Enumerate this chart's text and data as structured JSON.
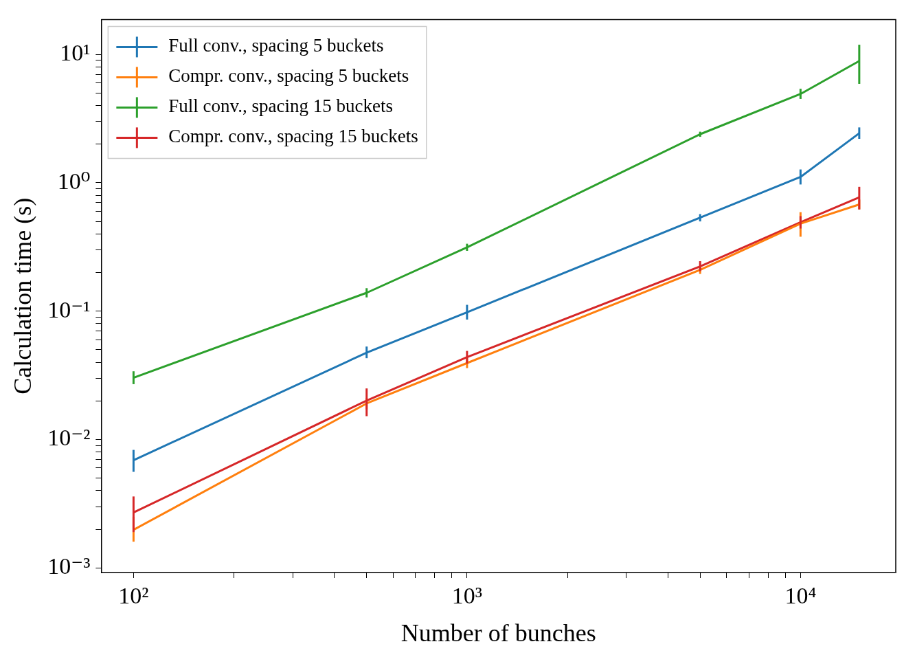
{
  "chart_data": {
    "type": "line",
    "xlabel": "Number of bunches",
    "ylabel": "Calculation time (s)",
    "log": "xy",
    "grid": false,
    "legend": "top left",
    "marker": "none",
    "line_style": "solid",
    "x": [
      100,
      500,
      1000,
      5000,
      10000,
      15000
    ],
    "xlim": [
      80,
      19300
    ],
    "ylim": [
      0.00092,
      18.7
    ],
    "xticks": [
      {
        "value": 100,
        "label": "10²"
      },
      {
        "value": 200,
        "label": null
      },
      {
        "value": 300,
        "label": null
      },
      {
        "value": 400,
        "label": null
      },
      {
        "value": 500,
        "label": null
      },
      {
        "value": 600,
        "label": null
      },
      {
        "value": 700,
        "label": null
      },
      {
        "value": 800,
        "label": null
      },
      {
        "value": 900,
        "label": null
      },
      {
        "value": 1000,
        "label": "10³"
      },
      {
        "value": 2000,
        "label": null
      },
      {
        "value": 3000,
        "label": null
      },
      {
        "value": 4000,
        "label": null
      },
      {
        "value": 5000,
        "label": null
      },
      {
        "value": 6000,
        "label": null
      },
      {
        "value": 7000,
        "label": null
      },
      {
        "value": 8000,
        "label": null
      },
      {
        "value": 9000,
        "label": null
      },
      {
        "value": 10000,
        "label": "10⁴"
      }
    ],
    "yticks": [
      {
        "value": 0.001,
        "label": "10⁻³"
      },
      {
        "value": 0.002,
        "label": null
      },
      {
        "value": 0.003,
        "label": null
      },
      {
        "value": 0.004,
        "label": null
      },
      {
        "value": 0.005,
        "label": null
      },
      {
        "value": 0.006,
        "label": null
      },
      {
        "value": 0.007,
        "label": null
      },
      {
        "value": 0.008,
        "label": null
      },
      {
        "value": 0.009,
        "label": null
      },
      {
        "value": 0.01,
        "label": "10⁻²"
      },
      {
        "value": 0.02,
        "label": null
      },
      {
        "value": 0.03,
        "label": null
      },
      {
        "value": 0.04,
        "label": null
      },
      {
        "value": 0.05,
        "label": null
      },
      {
        "value": 0.06,
        "label": null
      },
      {
        "value": 0.07,
        "label": null
      },
      {
        "value": 0.08,
        "label": null
      },
      {
        "value": 0.09,
        "label": null
      },
      {
        "value": 0.1,
        "label": "10⁻¹"
      },
      {
        "value": 0.2,
        "label": null
      },
      {
        "value": 0.3,
        "label": null
      },
      {
        "value": 0.4,
        "label": null
      },
      {
        "value": 0.5,
        "label": null
      },
      {
        "value": 0.6,
        "label": null
      },
      {
        "value": 0.7,
        "label": null
      },
      {
        "value": 0.8,
        "label": null
      },
      {
        "value": 0.9,
        "label": null
      },
      {
        "value": 1,
        "label": "10⁰"
      },
      {
        "value": 2,
        "label": null
      },
      {
        "value": 3,
        "label": null
      },
      {
        "value": 4,
        "label": null
      },
      {
        "value": 5,
        "label": null
      },
      {
        "value": 6,
        "label": null
      },
      {
        "value": 7,
        "label": null
      },
      {
        "value": 8,
        "label": null
      },
      {
        "value": 9,
        "label": null
      },
      {
        "value": 10,
        "label": "10¹"
      }
    ],
    "series": [
      {
        "name": "Full conv., spacing 5 buckets",
        "color": "#1f77b4",
        "values": [
          0.0069,
          0.0475,
          0.098,
          0.535,
          1.11,
          2.43
        ],
        "errors": [
          [
            0.0056,
            0.0083
          ],
          [
            0.043,
            0.053
          ],
          [
            0.086,
            0.112
          ],
          [
            0.5,
            0.57
          ],
          [
            0.97,
            1.27
          ],
          [
            2.2,
            2.7
          ]
        ]
      },
      {
        "name": "Compr. conv., spacing 5 buckets",
        "color": "#ff7f0e",
        "values": [
          0.00198,
          0.0191,
          0.0394,
          0.21,
          0.481,
          0.678
        ],
        "errors": [
          [
            0.0016,
            0.0025
          ],
          [
            0.0172,
            0.021
          ],
          [
            0.036,
            0.043
          ],
          [
            0.195,
            0.225
          ],
          [
            0.38,
            0.59
          ],
          [
            0.62,
            0.74
          ]
        ]
      },
      {
        "name": "Full conv., spacing 15 buckets",
        "color": "#2ca02c",
        "values": [
          0.0303,
          0.139,
          0.314,
          2.39,
          4.92,
          8.89
        ],
        "errors": [
          [
            0.027,
            0.034
          ],
          [
            0.128,
            0.151
          ],
          [
            0.295,
            0.335
          ],
          [
            2.28,
            2.5
          ],
          [
            4.5,
            5.4
          ],
          [
            5.9,
            11.9
          ]
        ]
      },
      {
        "name": "Compr. conv., spacing 15 buckets",
        "color": "#d62728",
        "values": [
          0.0027,
          0.0201,
          0.0438,
          0.223,
          0.492,
          0.77
        ],
        "errors": [
          [
            0.0019,
            0.0036
          ],
          [
            0.0152,
            0.025
          ],
          [
            0.039,
            0.049
          ],
          [
            0.205,
            0.245
          ],
          [
            0.44,
            0.55
          ],
          [
            0.62,
            0.93
          ]
        ]
      }
    ]
  }
}
